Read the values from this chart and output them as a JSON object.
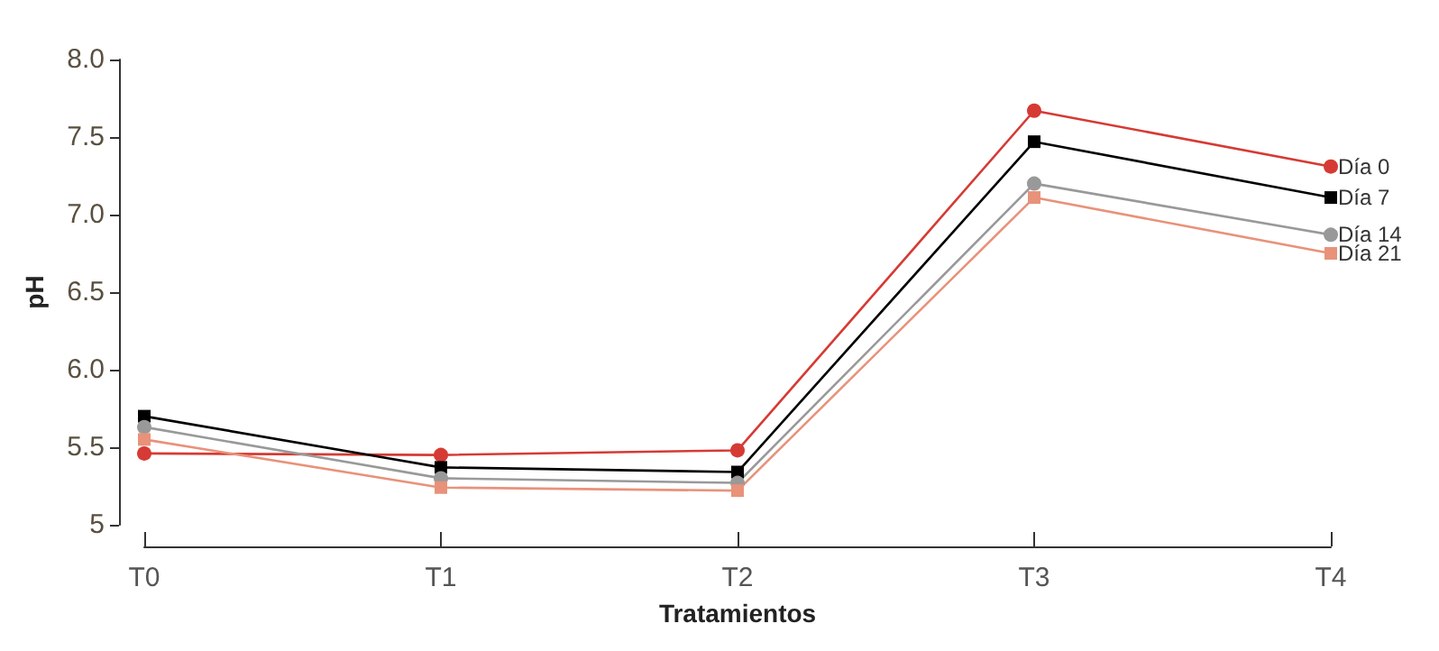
{
  "chart_data": {
    "type": "line",
    "xlabel": "Tratamientos",
    "ylabel": "pH",
    "categories": [
      "T0",
      "T1",
      "T2",
      "T3",
      "T4"
    ],
    "ylim": [
      5,
      8
    ],
    "yticks": [
      5,
      {
        "value": 5.5,
        "label": "5.5"
      },
      {
        "value": 6,
        "label": "6.0"
      },
      {
        "value": 6.5,
        "label": "6.5"
      },
      {
        "value": 7,
        "label": "7.0"
      },
      {
        "value": 7.5,
        "label": "7.5"
      },
      {
        "value": 8,
        "label": "8.0"
      }
    ],
    "grid": false,
    "legend": false,
    "line_style": "solid",
    "series": [
      {
        "name": "Día 0",
        "color": "#d63a34",
        "marker": "circle",
        "values": [
          5.46,
          5.45,
          5.48,
          7.67,
          7.31
        ]
      },
      {
        "name": "Día 7",
        "color": "#000000",
        "marker": "square",
        "values": [
          5.7,
          5.37,
          5.34,
          7.47,
          7.11
        ]
      },
      {
        "name": "Día 14",
        "color": "#999999",
        "marker": "circle",
        "values": [
          5.63,
          5.3,
          5.27,
          7.2,
          6.87
        ]
      },
      {
        "name": "Día 21",
        "color": "#e8927a",
        "marker": "square",
        "values": [
          5.55,
          5.24,
          5.22,
          7.11,
          6.75
        ]
      }
    ]
  }
}
